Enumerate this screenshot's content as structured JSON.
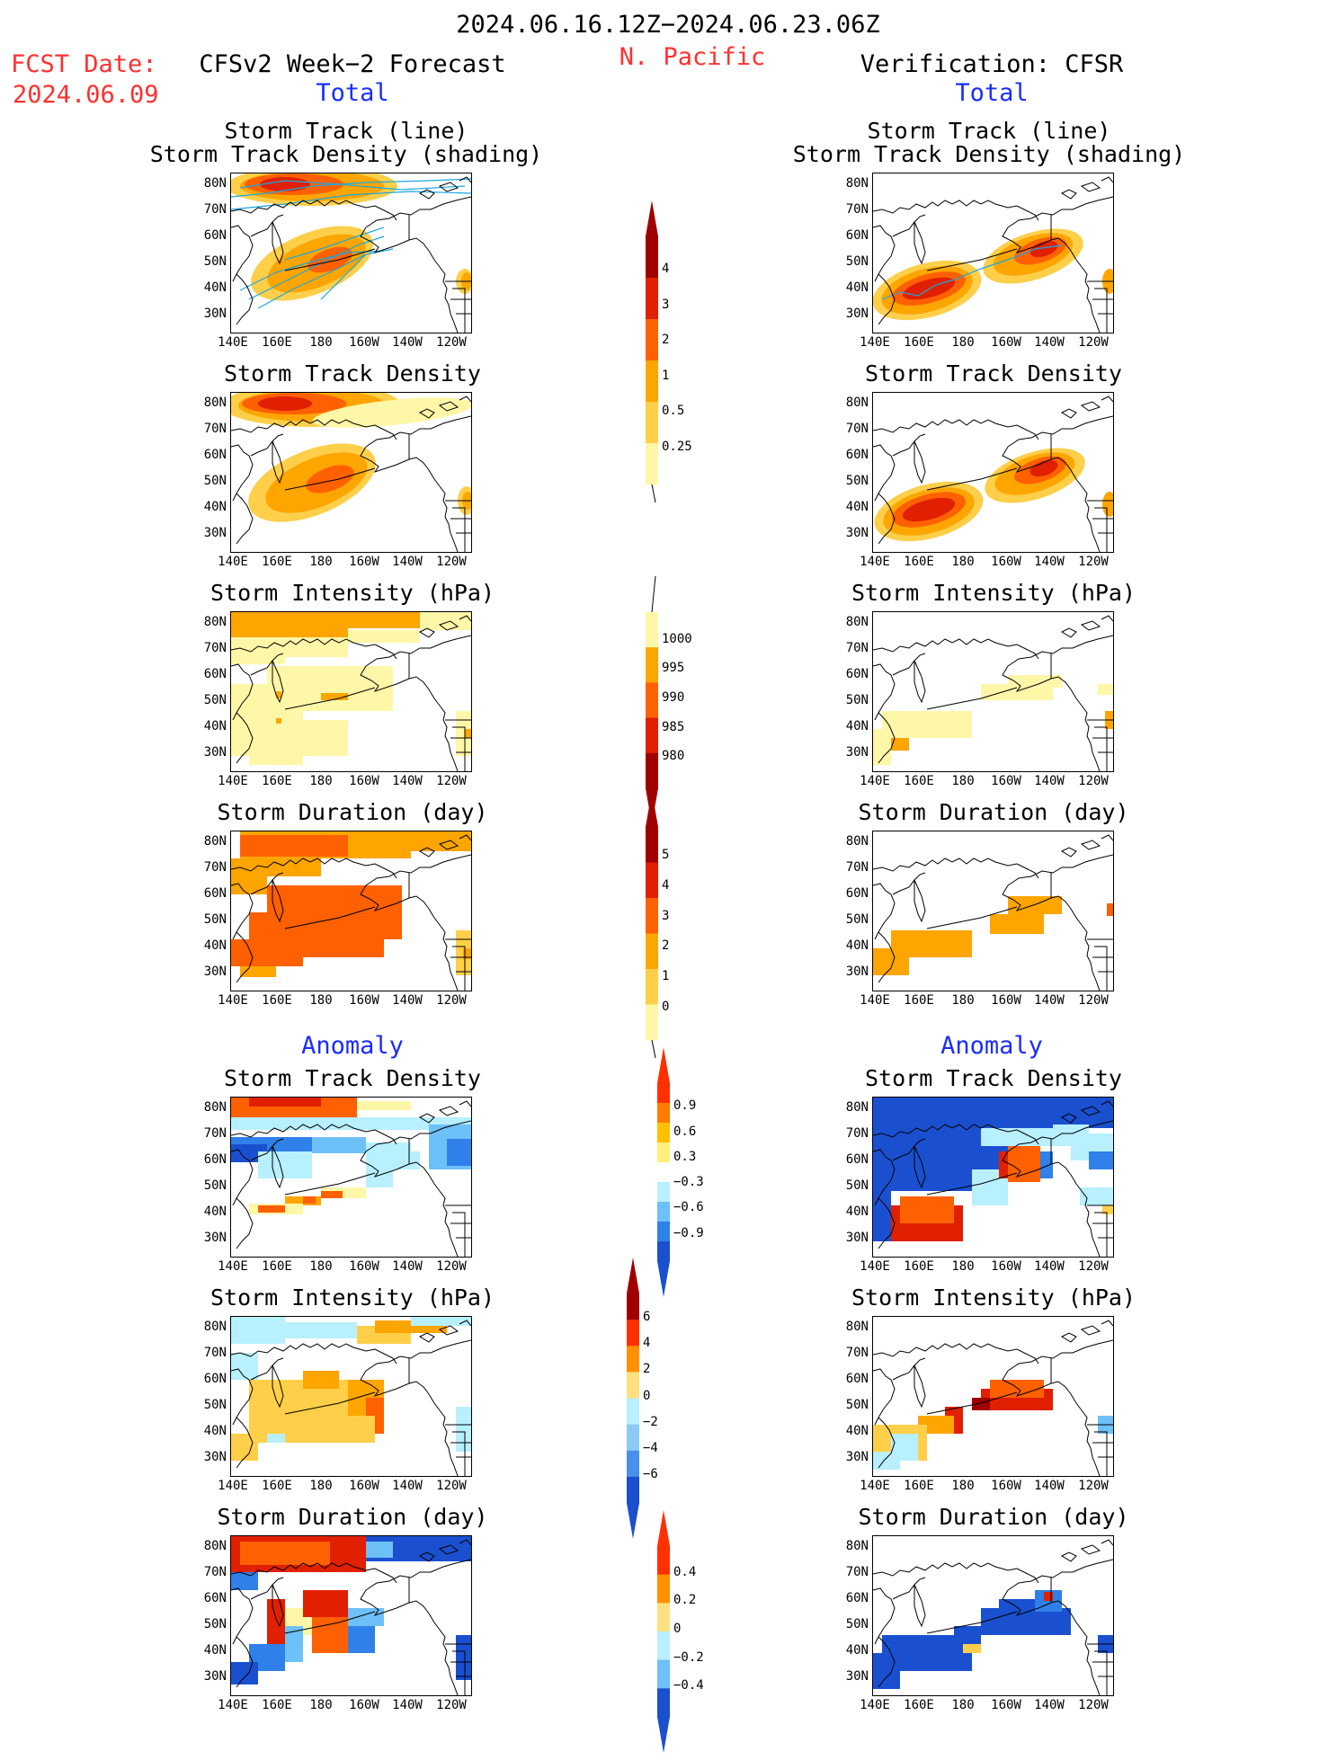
{
  "header": {
    "period": "2024.06.16.12Z−2024.06.23.06Z",
    "fcst_label": "FCST Date:",
    "fcst_date": "2024.06.09",
    "forecast_title": "CFSv2 Week−2 Forecast",
    "region": "N. Pacific",
    "verification_title": "Verification: CFSR"
  },
  "sections": {
    "total": "Total",
    "anomaly": "Anomaly"
  },
  "titles": {
    "track_line": "Storm Track (line)",
    "track_density_shading": "Storm Track Density (shading)",
    "track_density": "Storm Track Density",
    "intensity": "Storm Intensity (hPa)",
    "duration": "Storm Duration (day)"
  },
  "axes": {
    "lat_labels": [
      "80N",
      "70N",
      "60N",
      "50N",
      "40N",
      "30N"
    ],
    "lon_labels": [
      "140E",
      "160E",
      "180",
      "160W",
      "140W",
      "120W"
    ]
  },
  "colorbars": {
    "density_total": {
      "labels": [
        "4",
        "3",
        "2",
        "1",
        "0.5",
        "0.25"
      ],
      "colors": [
        "#a00000",
        "#e02000",
        "#ff6000",
        "#ffa500",
        "#ffcf4a",
        "#fff7a8"
      ]
    },
    "intensity_total": {
      "labels": [
        "1000",
        "995",
        "990",
        "985",
        "980"
      ],
      "colors": [
        "#fff7a8",
        "#ffa500",
        "#ff6000",
        "#e02000",
        "#a00000"
      ]
    },
    "duration_total": {
      "labels": [
        "5",
        "4",
        "3",
        "2",
        "1",
        "0"
      ],
      "colors": [
        "#a00000",
        "#e02000",
        "#ff6000",
        "#ffa500",
        "#ffcf4a",
        "#fff7a8"
      ]
    },
    "density_anom": {
      "labels": [
        "0.9",
        "0.6",
        "0.3",
        "−0.3",
        "−0.6",
        "−0.9"
      ],
      "colors": [
        "#ff3000",
        "#ff7a00",
        "#ffc000",
        "#fff080",
        "#ffffff",
        "#b8f0ff",
        "#6ec0f8",
        "#2f80e8",
        "#1a50d0"
      ]
    },
    "intensity_anom": {
      "labels": [
        "6",
        "4",
        "2",
        "0",
        "−2",
        "−4",
        "−6"
      ],
      "colors": [
        "#a00000",
        "#ff3000",
        "#ff9000",
        "#ffe080",
        "#b8f0ff",
        "#8ccbf5",
        "#4a90e8",
        "#1a50d0"
      ]
    },
    "duration_anom": {
      "labels": [
        "0.4",
        "0.2",
        "0",
        "−0.2",
        "−0.4"
      ],
      "colors": [
        "#ff3000",
        "#ff9000",
        "#ffe080",
        "#b8f0ff",
        "#6ec0f8",
        "#1a50d0"
      ]
    }
  },
  "colors": {
    "forecast_red": "#ff3030",
    "section_blue": "#1a2cff",
    "track_line": "#1aa8e0"
  }
}
